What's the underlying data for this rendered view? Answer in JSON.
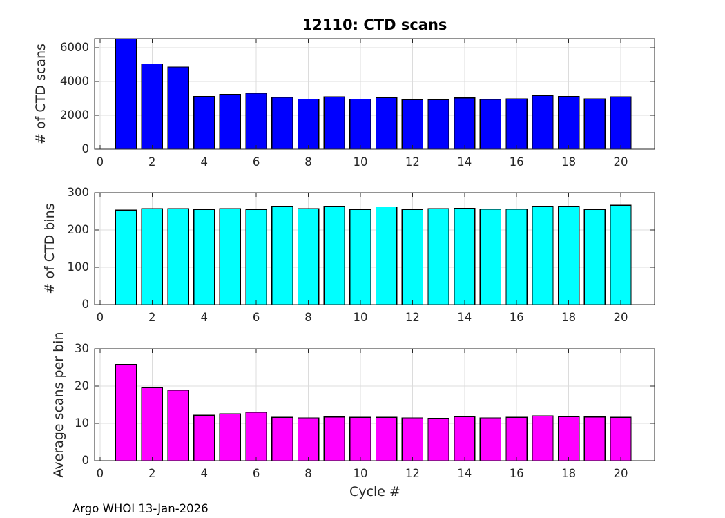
{
  "figure": {
    "footer": "Argo WHOI 13-Jan-2026",
    "background": "#ffffff"
  },
  "style": {
    "tick_label_color": "#262626",
    "axis_color": "#262626",
    "grid_color": "#dcdcdc",
    "bar_edge_color": "#000000",
    "title_color": "#000000"
  },
  "chart_data": [
    {
      "type": "bar",
      "title": "12110: CTD scans",
      "ylabel": "# of CTD scans",
      "xlabel": "",
      "bar_color": "#0000ff",
      "categories": [
        1,
        2,
        3,
        4,
        5,
        6,
        7,
        8,
        9,
        10,
        11,
        12,
        13,
        14,
        15,
        16,
        17,
        18,
        19,
        20
      ],
      "values": [
        6527,
        5037,
        4857,
        3111,
        3238,
        3315,
        3062,
        2956,
        3089,
        2958,
        3039,
        2933,
        2930,
        3035,
        2940,
        2980,
        3170,
        3110,
        2975,
        3095
      ],
      "xlim": [
        -0.21,
        21.3
      ],
      "ylim": [
        0,
        6527
      ],
      "xticks": [
        0,
        2,
        4,
        6,
        8,
        10,
        12,
        14,
        16,
        18,
        20
      ],
      "yticks": [
        0,
        2000,
        4000,
        6000
      ],
      "grid": true,
      "legend": false
    },
    {
      "type": "bar",
      "title": "",
      "ylabel": "# of CTD bins",
      "xlabel": "",
      "bar_color": "#00ffff",
      "categories": [
        1,
        2,
        3,
        4,
        5,
        6,
        7,
        8,
        9,
        10,
        11,
        12,
        13,
        14,
        15,
        16,
        17,
        18,
        19,
        20
      ],
      "values": [
        253,
        257,
        257,
        255,
        257,
        255,
        264,
        257,
        264,
        255,
        262,
        255,
        257,
        258,
        256,
        256,
        264,
        264,
        255,
        266
      ],
      "xlim": [
        -0.21,
        21.3
      ],
      "ylim": [
        0,
        300
      ],
      "xticks": [
        0,
        2,
        4,
        6,
        8,
        10,
        12,
        14,
        16,
        18,
        20
      ],
      "yticks": [
        0,
        100,
        200,
        300
      ],
      "grid": true,
      "legend": false
    },
    {
      "type": "bar",
      "title": "",
      "ylabel": "Average scans per bin",
      "xlabel": "Cycle #",
      "bar_color": "#ff00ff",
      "categories": [
        1,
        2,
        3,
        4,
        5,
        6,
        7,
        8,
        9,
        10,
        11,
        12,
        13,
        14,
        15,
        16,
        17,
        18,
        19,
        20
      ],
      "values": [
        25.8,
        19.6,
        18.9,
        12.2,
        12.6,
        13.0,
        11.6,
        11.5,
        11.7,
        11.6,
        11.6,
        11.5,
        11.4,
        11.8,
        11.5,
        11.6,
        12.0,
        11.8,
        11.7,
        11.6
      ],
      "xlim": [
        -0.21,
        21.3
      ],
      "ylim": [
        0,
        30
      ],
      "xticks": [
        0,
        2,
        4,
        6,
        8,
        10,
        12,
        14,
        16,
        18,
        20
      ],
      "yticks": [
        0,
        10,
        20,
        30
      ],
      "grid": true,
      "legend": false
    }
  ]
}
